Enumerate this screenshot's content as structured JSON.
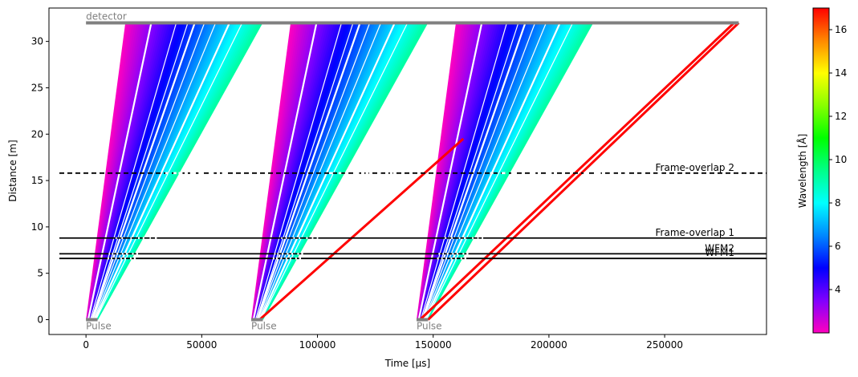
{
  "chart_data": {
    "type": "line",
    "xlabel": "Time [µs]",
    "ylabel": "Distance [m]",
    "xlim": [
      -16000,
      294000
    ],
    "ylim": [
      -1.6,
      33.6
    ],
    "xticks": [
      0,
      50000,
      100000,
      150000,
      200000,
      250000
    ],
    "yticks": [
      0,
      5,
      10,
      15,
      20,
      25,
      30
    ],
    "grid": false,
    "detector": {
      "label": "detector",
      "distance": 32,
      "t_start": 0,
      "t_end": 282000,
      "color": "#808080"
    },
    "pulses": [
      {
        "label": "Pulse",
        "t_start": 0,
        "t_end": 5000
      },
      {
        "label": "Pulse",
        "t_start": 71400,
        "t_end": 76400
      },
      {
        "label": "Pulse",
        "t_start": 142800,
        "t_end": 147800
      }
    ],
    "choppers": [
      {
        "label": "Frame-overlap 2",
        "distance": 15.8,
        "openings": [
          [
            34300,
            35600
          ],
          [
            37800,
            39100
          ],
          [
            40000,
            41700
          ],
          [
            45000,
            46300
          ],
          [
            48600,
            49900
          ],
          [
            53800,
            55200
          ],
          [
            58800,
            60000
          ],
          [
            105000,
            106700
          ],
          [
            109100,
            110300
          ],
          [
            111900,
            113400
          ],
          [
            116800,
            118000
          ],
          [
            120800,
            122100
          ],
          [
            126100,
            127400
          ],
          [
            131300,
            132500
          ],
          [
            174600,
            176000
          ],
          [
            179600,
            181200
          ],
          [
            183700,
            185200
          ],
          [
            188300,
            189600
          ],
          [
            193000,
            194200
          ],
          [
            199800,
            201200
          ],
          [
            205600,
            206800
          ],
          [
            215000,
            216500
          ],
          [
            220700,
            222400
          ],
          [
            226300,
            228000
          ],
          [
            232800,
            234400
          ],
          [
            240000,
            241600
          ],
          [
            247000,
            248700
          ]
        ]
      },
      {
        "label": "Frame-overlap 1",
        "distance": 8.8,
        "openings": [
          [
            12800,
            13300
          ],
          [
            15300,
            15900
          ],
          [
            19200,
            19700
          ],
          [
            22500,
            23200
          ],
          [
            24500,
            25200
          ],
          [
            27500,
            28000
          ],
          [
            29800,
            30600
          ],
          [
            84300,
            84800
          ],
          [
            86300,
            86800
          ],
          [
            89600,
            90200
          ],
          [
            91900,
            92500
          ],
          [
            95100,
            95800
          ],
          [
            97600,
            98200
          ],
          [
            99700,
            100300
          ],
          [
            155100,
            155700
          ],
          [
            157800,
            158400
          ],
          [
            161100,
            161700
          ],
          [
            163300,
            164100
          ],
          [
            166800,
            167400
          ],
          [
            169100,
            169600
          ],
          [
            171000,
            171600
          ]
        ]
      },
      {
        "label": "WFM2",
        "distance": 7.1,
        "openings": [
          [
            9800,
            10400
          ],
          [
            11200,
            11800
          ],
          [
            13200,
            13900
          ],
          [
            15500,
            16200
          ],
          [
            17300,
            18100
          ],
          [
            19900,
            20600
          ],
          [
            21700,
            22500
          ],
          [
            81300,
            81900
          ],
          [
            82600,
            83200
          ],
          [
            84600,
            85300
          ],
          [
            86800,
            87500
          ],
          [
            88700,
            89400
          ],
          [
            91300,
            92000
          ],
          [
            93000,
            93800
          ],
          [
            152300,
            153000
          ],
          [
            154000,
            154600
          ],
          [
            155900,
            156600
          ],
          [
            158200,
            158900
          ],
          [
            160100,
            160800
          ],
          [
            162700,
            163400
          ],
          [
            164400,
            165200
          ]
        ]
      },
      {
        "label": "WFM1",
        "distance": 6.6,
        "openings": [
          [
            9300,
            10000
          ],
          [
            10700,
            11300
          ],
          [
            12600,
            13300
          ],
          [
            14800,
            15500
          ],
          [
            16500,
            17300
          ],
          [
            19000,
            19700
          ],
          [
            20700,
            21500
          ],
          [
            80700,
            81400
          ],
          [
            82100,
            82800
          ],
          [
            84000,
            84700
          ],
          [
            86200,
            86900
          ],
          [
            88000,
            88700
          ],
          [
            90400,
            91100
          ],
          [
            92100,
            92900
          ],
          [
            151700,
            152400
          ],
          [
            153500,
            154100
          ],
          [
            155300,
            156000
          ],
          [
            157500,
            158200
          ],
          [
            159400,
            160100
          ],
          [
            161800,
            162500
          ],
          [
            163500,
            164300
          ]
        ]
      }
    ],
    "frames": [
      {
        "pulse_start": 0,
        "pulse_end": 5000,
        "det_start": 17000,
        "det_end": 76000,
        "lambda_min": 2.0,
        "lambda_max": 9.2,
        "gaps_at_detector": [
          28200,
          39000,
          44000,
          47000,
          51200,
          56000,
          62000,
          67500
        ]
      },
      {
        "pulse_start": 71400,
        "pulse_end": 76400,
        "det_start": 88400,
        "det_end": 147400,
        "lambda_min": 2.0,
        "lambda_max": 9.2,
        "gaps_at_detector": [
          99600,
          110400,
          115400,
          118400,
          122600,
          127400,
          133400,
          138900
        ]
      },
      {
        "pulse_start": 142800,
        "pulse_end": 147800,
        "det_start": 159800,
        "det_end": 218800,
        "lambda_min": 2.0,
        "lambda_max": 9.2,
        "gaps_at_detector": [
          171000,
          181800,
          186800,
          189800,
          194000,
          198800,
          204800,
          210300
        ]
      }
    ],
    "red_lines": [
      {
        "x": [
          75000,
          163000
        ],
        "y": [
          0,
          19.5
        ],
        "wavelength": 17
      },
      {
        "x": [
          144300,
          280000
        ],
        "y": [
          0,
          32
        ],
        "wavelength": 17
      },
      {
        "x": [
          147800,
          282000
        ],
        "y": [
          0,
          32
        ],
        "wavelength": 17
      }
    ],
    "colorbar": {
      "label": "Wavelength [Å]",
      "min": 2.0,
      "max": 17.0,
      "ticks": [
        4,
        6,
        8,
        10,
        12,
        14,
        16
      ],
      "colormap": "gist_rainbow_r"
    }
  }
}
